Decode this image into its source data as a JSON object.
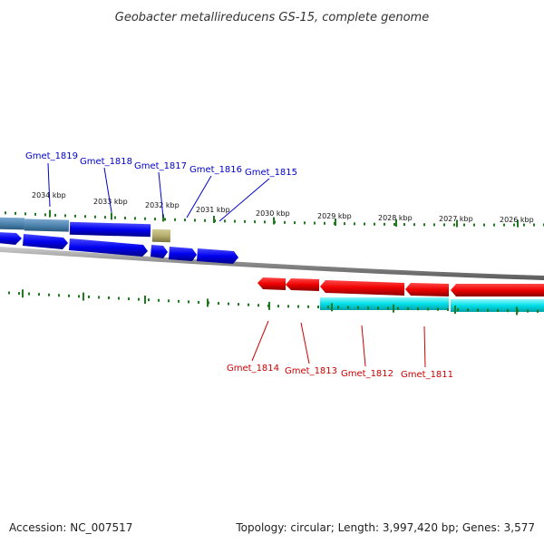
{
  "title": "Geobacter metallireducens GS-15, complete genome",
  "footer": {
    "accession": "Accession: NC_007517",
    "topology": "Topology: circular; Length: 3,997,420 bp; Genes: 3,577"
  },
  "colors": {
    "forward_label": "#0000cc",
    "reverse_label": "#cc0000",
    "forward_gene": "#0000ee",
    "reverse_gene": "#ee0000",
    "steel_gene": "#4f86b0",
    "olive_gene": "#b4ad6e",
    "cyan_gene": "#00e0e8",
    "tick": "#207a20",
    "backbone": "#888888"
  },
  "scale_labels": [
    "2034 kbp",
    "2033 kbp",
    "2032 kbp",
    "2031 kbp",
    "2030 kbp",
    "2029 kbp",
    "2028 kbp",
    "2027 kbp",
    "2026 kbp"
  ],
  "forward_gene_labels": [
    "Gmet_1819",
    "Gmet_1818",
    "Gmet_1817",
    "Gmet_1816",
    "Gmet_1815"
  ],
  "reverse_gene_labels": [
    "Gmet_1814",
    "Gmet_1813",
    "Gmet_1812",
    "Gmet_1811"
  ]
}
